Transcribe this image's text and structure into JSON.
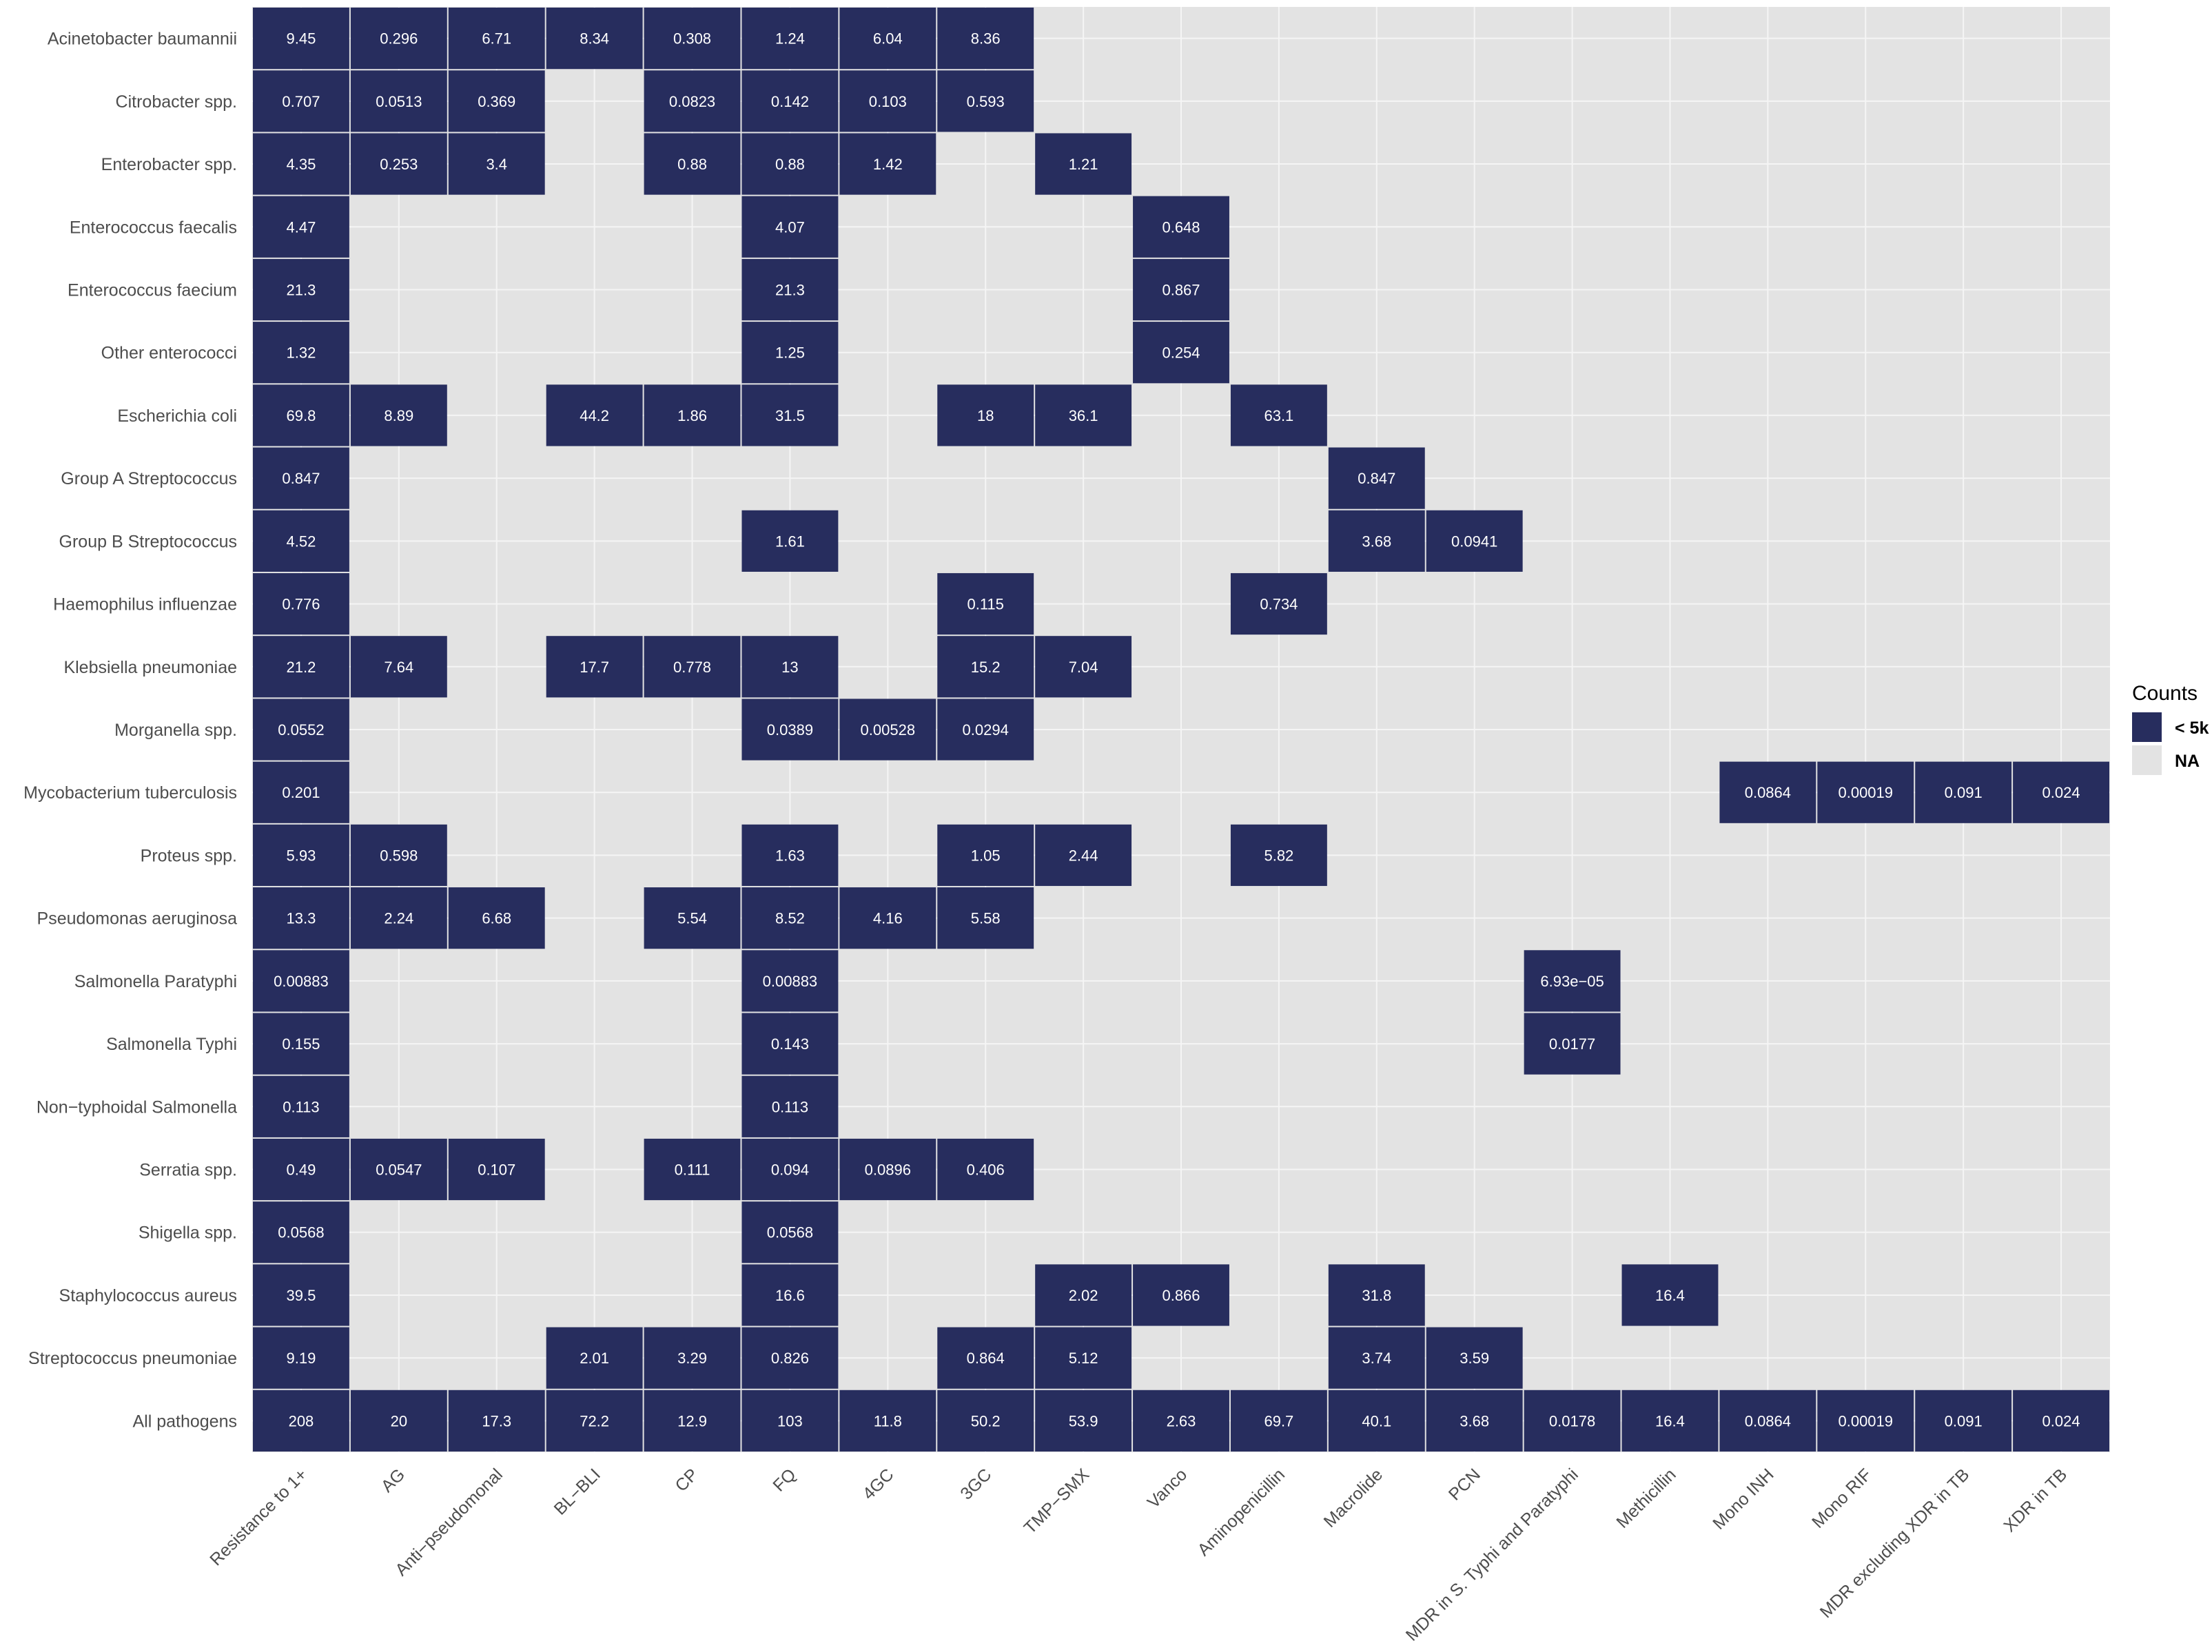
{
  "chart_data": {
    "type": "heatmap",
    "title": "",
    "xlabel": "",
    "ylabel": "",
    "x": [
      "Resistance to 1+",
      "AG",
      "Anti−pseudomonal",
      "BL−BLI",
      "CP",
      "FQ",
      "4GC",
      "3GC",
      "TMP−SMX",
      "Vanco",
      "Aminopenicillin",
      "Macrolide",
      "PCN",
      "MDR in S. Typhi and Paratyphi",
      "Methicillin",
      "Mono INH",
      "Mono RIF",
      "MDR excluding XDR in TB",
      "XDR in TB"
    ],
    "y": [
      "Acinetobacter baumannii",
      "Citrobacter spp.",
      "Enterobacter spp.",
      "Enterococcus faecalis",
      "Enterococcus faecium",
      "Other enterococci",
      "Escherichia coli",
      "Group A Streptococcus",
      "Group B Streptococcus",
      "Haemophilus influenzae",
      "Klebsiella pneumoniae",
      "Morganella spp.",
      "Mycobacterium tuberculosis",
      "Proteus spp.",
      "Pseudomonas aeruginosa",
      "Salmonella Paratyphi",
      "Salmonella Typhi",
      "Non−typhoidal Salmonella",
      "Serratia spp.",
      "Shigella spp.",
      "Staphylococcus aureus",
      "Streptococcus pneumoniae",
      "All pathogens"
    ],
    "values": [
      [
        "9.45",
        "0.296",
        "6.71",
        "8.34",
        "0.308",
        "1.24",
        "6.04",
        "8.36",
        null,
        null,
        null,
        null,
        null,
        null,
        null,
        null,
        null,
        null,
        null
      ],
      [
        "0.707",
        "0.0513",
        "0.369",
        null,
        "0.0823",
        "0.142",
        "0.103",
        "0.593",
        null,
        null,
        null,
        null,
        null,
        null,
        null,
        null,
        null,
        null,
        null
      ],
      [
        "4.35",
        "0.253",
        "3.4",
        null,
        "0.88",
        "0.88",
        "1.42",
        null,
        "1.21",
        null,
        null,
        null,
        null,
        null,
        null,
        null,
        null,
        null,
        null
      ],
      [
        "4.47",
        null,
        null,
        null,
        null,
        "4.07",
        null,
        null,
        null,
        "0.648",
        null,
        null,
        null,
        null,
        null,
        null,
        null,
        null,
        null
      ],
      [
        "21.3",
        null,
        null,
        null,
        null,
        "21.3",
        null,
        null,
        null,
        "0.867",
        null,
        null,
        null,
        null,
        null,
        null,
        null,
        null,
        null
      ],
      [
        "1.32",
        null,
        null,
        null,
        null,
        "1.25",
        null,
        null,
        null,
        "0.254",
        null,
        null,
        null,
        null,
        null,
        null,
        null,
        null,
        null
      ],
      [
        "69.8",
        "8.89",
        null,
        "44.2",
        "1.86",
        "31.5",
        null,
        "18",
        "36.1",
        null,
        "63.1",
        null,
        null,
        null,
        null,
        null,
        null,
        null,
        null
      ],
      [
        "0.847",
        null,
        null,
        null,
        null,
        null,
        null,
        null,
        null,
        null,
        null,
        "0.847",
        null,
        null,
        null,
        null,
        null,
        null,
        null
      ],
      [
        "4.52",
        null,
        null,
        null,
        null,
        "1.61",
        null,
        null,
        null,
        null,
        null,
        "3.68",
        "0.0941",
        null,
        null,
        null,
        null,
        null,
        null
      ],
      [
        "0.776",
        null,
        null,
        null,
        null,
        null,
        null,
        "0.115",
        null,
        null,
        "0.734",
        null,
        null,
        null,
        null,
        null,
        null,
        null,
        null
      ],
      [
        "21.2",
        "7.64",
        null,
        "17.7",
        "0.778",
        "13",
        null,
        "15.2",
        "7.04",
        null,
        null,
        null,
        null,
        null,
        null,
        null,
        null,
        null,
        null
      ],
      [
        "0.0552",
        null,
        null,
        null,
        null,
        "0.0389",
        "0.00528",
        "0.0294",
        null,
        null,
        null,
        null,
        null,
        null,
        null,
        null,
        null,
        null,
        null
      ],
      [
        "0.201",
        null,
        null,
        null,
        null,
        null,
        null,
        null,
        null,
        null,
        null,
        null,
        null,
        null,
        null,
        "0.0864",
        "0.00019",
        "0.091",
        "0.024"
      ],
      [
        "5.93",
        "0.598",
        null,
        null,
        null,
        "1.63",
        null,
        "1.05",
        "2.44",
        null,
        "5.82",
        null,
        null,
        null,
        null,
        null,
        null,
        null,
        null
      ],
      [
        "13.3",
        "2.24",
        "6.68",
        null,
        "5.54",
        "8.52",
        "4.16",
        "5.58",
        null,
        null,
        null,
        null,
        null,
        null,
        null,
        null,
        null,
        null,
        null
      ],
      [
        "0.00883",
        null,
        null,
        null,
        null,
        "0.00883",
        null,
        null,
        null,
        null,
        null,
        null,
        null,
        "6.93e−05",
        null,
        null,
        null,
        null,
        null
      ],
      [
        "0.155",
        null,
        null,
        null,
        null,
        "0.143",
        null,
        null,
        null,
        null,
        null,
        null,
        null,
        "0.0177",
        null,
        null,
        null,
        null,
        null
      ],
      [
        "0.113",
        null,
        null,
        null,
        null,
        "0.113",
        null,
        null,
        null,
        null,
        null,
        null,
        null,
        null,
        null,
        null,
        null,
        null,
        null
      ],
      [
        "0.49",
        "0.0547",
        "0.107",
        null,
        "0.111",
        "0.094",
        "0.0896",
        "0.406",
        null,
        null,
        null,
        null,
        null,
        null,
        null,
        null,
        null,
        null,
        null
      ],
      [
        "0.0568",
        null,
        null,
        null,
        null,
        "0.0568",
        null,
        null,
        null,
        null,
        null,
        null,
        null,
        null,
        null,
        null,
        null,
        null,
        null
      ],
      [
        "39.5",
        null,
        null,
        null,
        null,
        "16.6",
        null,
        null,
        "2.02",
        "0.866",
        null,
        "31.8",
        null,
        null,
        "16.4",
        null,
        null,
        null,
        null
      ],
      [
        "9.19",
        null,
        null,
        "2.01",
        "3.29",
        "0.826",
        null,
        "0.864",
        "5.12",
        null,
        null,
        "3.74",
        "3.59",
        null,
        null,
        null,
        null,
        null,
        null
      ],
      [
        "208",
        "20",
        "17.3",
        "72.2",
        "12.9",
        "103",
        "11.8",
        "50.2",
        "53.9",
        "2.63",
        "69.7",
        "40.1",
        "3.68",
        "0.0178",
        "16.4",
        "0.0864",
        "0.00019",
        "0.091",
        "0.024"
      ]
    ],
    "legend": {
      "title": "Counts",
      "position": "right",
      "items": [
        {
          "label": "< 5k",
          "color": "#272d5e"
        },
        {
          "label": "NA",
          "color": "#e3e3e3"
        }
      ]
    },
    "colors": {
      "filled": "#272d5e",
      "na": "#e3e3e3",
      "gridline": "#f5f5f5",
      "label_text": "#4d4d4d",
      "cell_text": "#ffffff"
    },
    "grid": true
  }
}
